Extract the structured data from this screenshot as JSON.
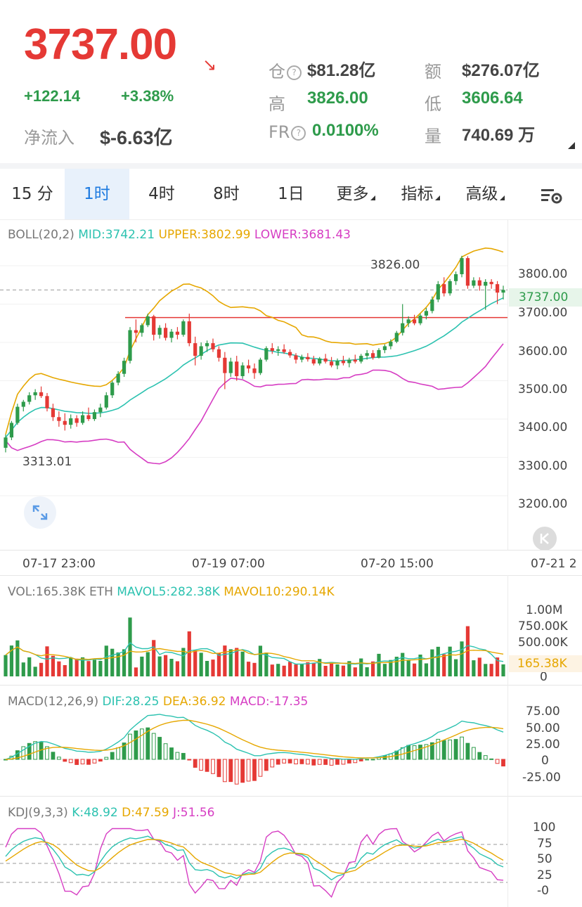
{
  "header": {
    "price": "3737.00",
    "change": "+122.14",
    "change_pct": "+3.38%",
    "net_inflow_label": "净流入",
    "net_inflow_value": "$-6.63亿",
    "stats": {
      "oi_label": "仓",
      "oi_value": "$81.28亿",
      "turnover_label": "额",
      "turnover_value": "$276.07亿",
      "high_label": "高",
      "high_value": "3826.00",
      "low_label": "低",
      "low_value": "3606.64",
      "fr_label": "FR",
      "fr_value": "0.0100%",
      "vol_label": "量",
      "vol_value": "740.69 万"
    },
    "colors": {
      "up": "#2e9b4b",
      "down": "#e53935"
    }
  },
  "tabs": [
    {
      "label": "15 分"
    },
    {
      "label": "1时",
      "active": true
    },
    {
      "label": "4时"
    },
    {
      "label": "8时"
    },
    {
      "label": "1日"
    },
    {
      "label": "更多"
    },
    {
      "label": "指标"
    },
    {
      "label": "高级"
    }
  ],
  "boll": {
    "label": "BOLL(20,2)",
    "mid": "MID:3742.21",
    "upper": "UPPER:3802.99",
    "lower": "LOWER:3681.43",
    "high_marker": "3826.00",
    "low_marker": "3313.01",
    "last_price": "3737.00",
    "y_ticks": [
      "3800.00",
      "3700.00",
      "3600.00",
      "3500.00",
      "3400.00",
      "3300.00",
      "3200.00"
    ],
    "x_ticks": [
      "07-17 23:00",
      "07-19 07:00",
      "07-20 15:00",
      "07-21 2"
    ]
  },
  "vol": {
    "label": "VOL:165.38K ETH",
    "mavol5": "MAVOL5:282.38K",
    "mavol10": "MAVOL10:290.14K",
    "y_ticks": [
      "1.00M",
      "750.00K",
      "500.00K",
      "0"
    ],
    "current": "165.38K"
  },
  "macd": {
    "label": "MACD(12,26,9)",
    "dif": "DIF:28.25",
    "dea": "DEA:36.92",
    "macd": "MACD:-17.35",
    "y_ticks": [
      "75.00",
      "50.00",
      "25.00",
      "0",
      "-25.00"
    ]
  },
  "kdj": {
    "label": "KDJ(9,3,3)",
    "k": "K:48.92",
    "d": "D:47.59",
    "j": "J:51.56",
    "y_ticks": [
      "100",
      "75",
      "50",
      "25",
      "-0"
    ]
  },
  "chart_data": {
    "type": "candlestick",
    "interval": "1h",
    "candles": [
      [
        3325,
        3360,
        3313,
        3352
      ],
      [
        3352,
        3395,
        3345,
        3390
      ],
      [
        3390,
        3440,
        3385,
        3432
      ],
      [
        3432,
        3450,
        3420,
        3445
      ],
      [
        3445,
        3470,
        3438,
        3462
      ],
      [
        3462,
        3478,
        3450,
        3470
      ],
      [
        3470,
        3485,
        3455,
        3460
      ],
      [
        3460,
        3468,
        3420,
        3428
      ],
      [
        3428,
        3440,
        3395,
        3405
      ],
      [
        3405,
        3420,
        3380,
        3395
      ],
      [
        3395,
        3415,
        3370,
        3385
      ],
      [
        3385,
        3412,
        3375,
        3402
      ],
      [
        3402,
        3410,
        3380,
        3390
      ],
      [
        3390,
        3420,
        3385,
        3410
      ],
      [
        3410,
        3430,
        3395,
        3400
      ],
      [
        3400,
        3425,
        3395,
        3418
      ],
      [
        3418,
        3440,
        3405,
        3430
      ],
      [
        3430,
        3470,
        3425,
        3462
      ],
      [
        3462,
        3500,
        3455,
        3495
      ],
      [
        3495,
        3525,
        3488,
        3518
      ],
      [
        3518,
        3560,
        3510,
        3552
      ],
      [
        3552,
        3640,
        3545,
        3632
      ],
      [
        3632,
        3660,
        3600,
        3625
      ],
      [
        3625,
        3650,
        3615,
        3645
      ],
      [
        3645,
        3675,
        3640,
        3668
      ],
      [
        3668,
        3672,
        3605,
        3620
      ],
      [
        3620,
        3645,
        3610,
        3638
      ],
      [
        3638,
        3650,
        3605,
        3612
      ],
      [
        3612,
        3635,
        3600,
        3628
      ],
      [
        3628,
        3640,
        3608,
        3620
      ],
      [
        3620,
        3660,
        3615,
        3655
      ],
      [
        3655,
        3675,
        3590,
        3598
      ],
      [
        3598,
        3615,
        3540,
        3565
      ],
      [
        3565,
        3600,
        3555,
        3590
      ],
      [
        3590,
        3605,
        3575,
        3598
      ],
      [
        3598,
        3610,
        3575,
        3582
      ],
      [
        3582,
        3590,
        3550,
        3560
      ],
      [
        3560,
        3575,
        3478,
        3520
      ],
      [
        3520,
        3560,
        3510,
        3550
      ],
      [
        3550,
        3565,
        3500,
        3512
      ],
      [
        3512,
        3548,
        3505,
        3540
      ],
      [
        3540,
        3555,
        3520,
        3532
      ],
      [
        3532,
        3545,
        3505,
        3520
      ],
      [
        3520,
        3560,
        3515,
        3555
      ],
      [
        3555,
        3590,
        3550,
        3585
      ],
      [
        3585,
        3598,
        3570,
        3578
      ],
      [
        3578,
        3590,
        3565,
        3582
      ],
      [
        3582,
        3595,
        3570,
        3575
      ],
      [
        3575,
        3582,
        3560,
        3566
      ],
      [
        3566,
        3572,
        3545,
        3555
      ],
      [
        3555,
        3568,
        3548,
        3562
      ],
      [
        3562,
        3572,
        3550,
        3556
      ],
      [
        3556,
        3565,
        3540,
        3545
      ],
      [
        3545,
        3562,
        3540,
        3558
      ],
      [
        3558,
        3570,
        3545,
        3550
      ],
      [
        3550,
        3562,
        3535,
        3540
      ],
      [
        3540,
        3558,
        3530,
        3552
      ],
      [
        3552,
        3565,
        3540,
        3546
      ],
      [
        3546,
        3560,
        3535,
        3555
      ],
      [
        3555,
        3568,
        3545,
        3550
      ],
      [
        3550,
        3570,
        3545,
        3565
      ],
      [
        3565,
        3580,
        3555,
        3572
      ],
      [
        3572,
        3580,
        3555,
        3560
      ],
      [
        3560,
        3585,
        3558,
        3580
      ],
      [
        3580,
        3595,
        3572,
        3590
      ],
      [
        3590,
        3608,
        3582,
        3602
      ],
      [
        3602,
        3630,
        3598,
        3625
      ],
      [
        3625,
        3700,
        3618,
        3650
      ],
      [
        3650,
        3668,
        3640,
        3660
      ],
      [
        3660,
        3672,
        3645,
        3650
      ],
      [
        3650,
        3675,
        3645,
        3670
      ],
      [
        3670,
        3690,
        3660,
        3682
      ],
      [
        3682,
        3720,
        3676,
        3712
      ],
      [
        3712,
        3760,
        3705,
        3752
      ],
      [
        3752,
        3770,
        3720,
        3728
      ],
      [
        3728,
        3765,
        3722,
        3760
      ],
      [
        3760,
        3785,
        3750,
        3778
      ],
      [
        3778,
        3826,
        3770,
        3820
      ],
      [
        3820,
        3825,
        3740,
        3748
      ],
      [
        3748,
        3770,
        3742,
        3762
      ],
      [
        3762,
        3770,
        3735,
        3748
      ],
      [
        3748,
        3765,
        3685,
        3758
      ],
      [
        3758,
        3765,
        3740,
        3752
      ],
      [
        3752,
        3760,
        3700,
        3730
      ],
      [
        3730,
        3748,
        3712,
        3737
      ]
    ],
    "volume_unit": "K"
  }
}
